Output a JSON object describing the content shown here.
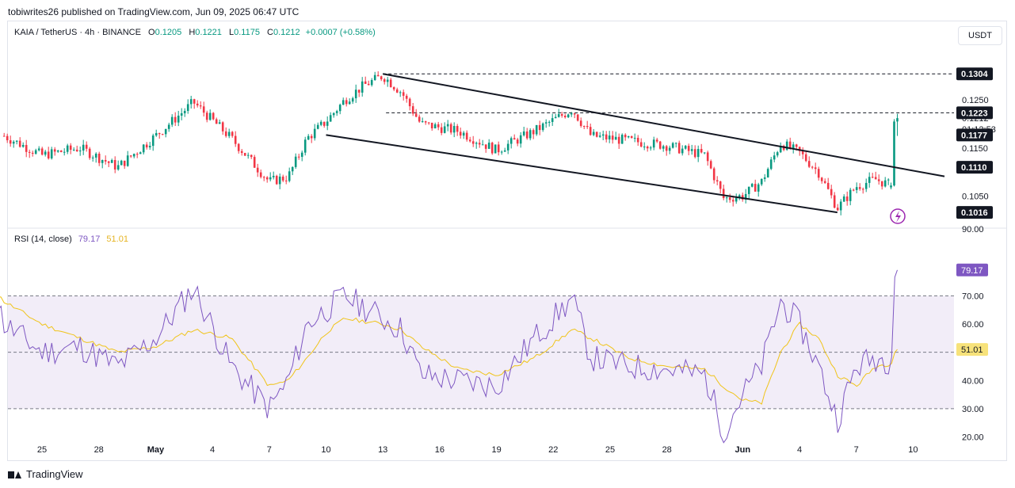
{
  "attribution": "tobiwrites26 published on TradingView.com, Jun 09, 2025 06:47 UTC",
  "header": {
    "symbol": "KAIA / TetherUS · 4h · BINANCE",
    "o_label": "O",
    "o": "0.1205",
    "h_label": "H",
    "h": "0.1221",
    "l_label": "L",
    "l": "0.1175",
    "c_label": "C",
    "c": "0.1212",
    "change": "+0.0007 (+0.58%)"
  },
  "currency_button": "USDT",
  "brand": "TradingView",
  "colors": {
    "up": "#089981",
    "down": "#f23645",
    "rsi": "#7e57c2",
    "rsi_ma": "#f0c419",
    "band": "#ede7f6",
    "trendline": "#131722"
  },
  "chart_data": [
    {
      "type": "candlestick",
      "title": "KAIA / TetherUS · 4h · BINANCE",
      "ylim": [
        0.0985,
        0.1362
      ],
      "y_ticks": [
        "0.1250",
        "0.1212",
        "0.1150",
        "0.1050",
        "90.00"
      ],
      "x_ticks": [
        "25",
        "28",
        "May",
        "4",
        "7",
        "10",
        "13",
        "16",
        "19",
        "22",
        "25",
        "28",
        "Jun",
        "4",
        "7",
        "10"
      ],
      "price_labels": [
        {
          "value": "0.1304",
          "kind": "level"
        },
        {
          "value": "0.1223",
          "kind": "level"
        },
        {
          "value": "0.1177",
          "kind": "level"
        },
        {
          "value": "0.1110",
          "kind": "level"
        },
        {
          "value": "0.1016",
          "kind": "level"
        }
      ],
      "countdown": "01:12:53",
      "horizontal_levels": [
        0.1304,
        0.1223
      ],
      "channel": {
        "upper": [
          {
            "date": "May 13",
            "value": 0.1304
          },
          {
            "date": "Jun 9",
            "value": 0.111
          }
        ],
        "lower": [
          {
            "date": "May 10",
            "value": 0.1177
          },
          {
            "date": "Jun 6",
            "value": 0.1016
          }
        ]
      },
      "price_path": [
        {
          "date": "Apr 23",
          "value": 0.1175
        },
        {
          "date": "Apr 25",
          "value": 0.1135
        },
        {
          "date": "Apr 27",
          "value": 0.115
        },
        {
          "date": "Apr 29",
          "value": 0.111
        },
        {
          "date": "May 1",
          "value": 0.1175
        },
        {
          "date": "May 3",
          "value": 0.1245
        },
        {
          "date": "May 5",
          "value": 0.117
        },
        {
          "date": "May 7",
          "value": 0.108
        },
        {
          "date": "May 8",
          "value": 0.109
        },
        {
          "date": "May 9",
          "value": 0.117
        },
        {
          "date": "May 10",
          "value": 0.1205
        },
        {
          "date": "May 11",
          "value": 0.125
        },
        {
          "date": "May 12",
          "value": 0.128
        },
        {
          "date": "May 13",
          "value": 0.13
        },
        {
          "date": "May 14",
          "value": 0.1265
        },
        {
          "date": "May 15",
          "value": 0.12
        },
        {
          "date": "May 17",
          "value": 0.1185
        },
        {
          "date": "May 19",
          "value": 0.1145
        },
        {
          "date": "May 21",
          "value": 0.1185
        },
        {
          "date": "May 23",
          "value": 0.123
        },
        {
          "date": "May 24",
          "value": 0.1175
        },
        {
          "date": "May 26",
          "value": 0.1165
        },
        {
          "date": "May 28",
          "value": 0.1155
        },
        {
          "date": "May 30",
          "value": 0.1135
        },
        {
          "date": "May 31",
          "value": 0.1045
        },
        {
          "date": "Jun 1",
          "value": 0.105
        },
        {
          "date": "Jun 2",
          "value": 0.108
        },
        {
          "date": "Jun 3",
          "value": 0.116
        },
        {
          "date": "Jun 4",
          "value": 0.114
        },
        {
          "date": "Jun 5",
          "value": 0.11
        },
        {
          "date": "Jun 6",
          "value": 0.1025
        },
        {
          "date": "Jun 7",
          "value": 0.107
        },
        {
          "date": "Jun 8",
          "value": 0.1085
        },
        {
          "date": "Jun 8 20:00",
          "value": 0.1072
        },
        {
          "date": "Jun 9 00:00",
          "value": 0.1205
        },
        {
          "date": "Jun 9 04:00",
          "value": 0.1212
        }
      ]
    },
    {
      "type": "line",
      "title": "RSI (14, close)",
      "value_rsi": "79.17",
      "value_ma": "51.01",
      "ylim": [
        12,
        94
      ],
      "y_ticks": [
        "70.00",
        "60.00",
        "40.00",
        "30.00",
        "20.00"
      ],
      "band": [
        30,
        70
      ],
      "midline": 50,
      "x_ticks": [
        "25",
        "28",
        "May",
        "4",
        "7",
        "10",
        "13",
        "16",
        "19",
        "22",
        "25",
        "28",
        "Jun",
        "4",
        "7",
        "10"
      ],
      "series": [
        {
          "values_by_date": [
            {
              "date": "Apr 22",
              "value": 83
            },
            {
              "date": "Apr 23",
              "value": 60
            },
            {
              "date": "Apr 25",
              "value": 50
            },
            {
              "date": "Apr 27",
              "value": 52
            },
            {
              "date": "Apr 29",
              "value": 45
            },
            {
              "date": "May 1",
              "value": 55
            },
            {
              "date": "May 3",
              "value": 73
            },
            {
              "date": "May 5",
              "value": 45
            },
            {
              "date": "May 7",
              "value": 30
            },
            {
              "date": "May 8",
              "value": 40
            },
            {
              "date": "May 9",
              "value": 60
            },
            {
              "date": "May 10",
              "value": 65
            },
            {
              "date": "May 11",
              "value": 70
            },
            {
              "date": "May 13",
              "value": 62
            },
            {
              "date": "May 14",
              "value": 58
            },
            {
              "date": "May 15",
              "value": 42
            },
            {
              "date": "May 17",
              "value": 40
            },
            {
              "date": "May 19",
              "value": 38
            },
            {
              "date": "May 21",
              "value": 55
            },
            {
              "date": "May 23",
              "value": 69
            },
            {
              "date": "May 24",
              "value": 48
            },
            {
              "date": "May 26",
              "value": 45
            },
            {
              "date": "May 28",
              "value": 44
            },
            {
              "date": "May 30",
              "value": 42
            },
            {
              "date": "May 31",
              "value": 22
            },
            {
              "date": "Jun 1",
              "value": 35
            },
            {
              "date": "Jun 2",
              "value": 45
            },
            {
              "date": "Jun 3",
              "value": 68
            },
            {
              "date": "Jun 4",
              "value": 60
            },
            {
              "date": "Jun 5",
              "value": 45
            },
            {
              "date": "Jun 6",
              "value": 26
            },
            {
              "date": "Jun 7",
              "value": 45
            },
            {
              "date": "Jun 8",
              "value": 48
            },
            {
              "date": "Jun 8 20:00",
              "value": 47
            },
            {
              "date": "Jun 9 00:00",
              "value": 78
            },
            {
              "date": "Jun 9 04:00",
              "value": 79.17
            }
          ]
        },
        {
          "values_by_date": [
            {
              "date": "Apr 22",
              "value": 75
            },
            {
              "date": "Apr 23",
              "value": 68
            },
            {
              "date": "Apr 25",
              "value": 60
            },
            {
              "date": "Apr 27",
              "value": 55
            },
            {
              "date": "Apr 29",
              "value": 50
            },
            {
              "date": "May 1",
              "value": 52
            },
            {
              "date": "May 3",
              "value": 58
            },
            {
              "date": "May 5",
              "value": 55
            },
            {
              "date": "May 7",
              "value": 38
            },
            {
              "date": "May 8",
              "value": 40
            },
            {
              "date": "May 9",
              "value": 48
            },
            {
              "date": "May 10",
              "value": 57
            },
            {
              "date": "May 11",
              "value": 62
            },
            {
              "date": "May 13",
              "value": 60
            },
            {
              "date": "May 14",
              "value": 58
            },
            {
              "date": "May 15",
              "value": 52
            },
            {
              "date": "May 17",
              "value": 44
            },
            {
              "date": "May 19",
              "value": 42
            },
            {
              "date": "May 21",
              "value": 48
            },
            {
              "date": "May 23",
              "value": 58
            },
            {
              "date": "May 24",
              "value": 55
            },
            {
              "date": "May 26",
              "value": 48
            },
            {
              "date": "May 28",
              "value": 45
            },
            {
              "date": "May 30",
              "value": 44
            },
            {
              "date": "May 31",
              "value": 38
            },
            {
              "date": "Jun 1",
              "value": 33
            },
            {
              "date": "Jun 2",
              "value": 32
            },
            {
              "date": "Jun 3",
              "value": 50
            },
            {
              "date": "Jun 4",
              "value": 60
            },
            {
              "date": "Jun 5",
              "value": 55
            },
            {
              "date": "Jun 6",
              "value": 42
            },
            {
              "date": "Jun 7",
              "value": 38
            },
            {
              "date": "Jun 8",
              "value": 45
            },
            {
              "date": "Jun 8 20:00",
              "value": 46
            },
            {
              "date": "Jun 9 00:00",
              "value": 50
            },
            {
              "date": "Jun 9 04:00",
              "value": 51.01
            }
          ]
        }
      ]
    }
  ]
}
